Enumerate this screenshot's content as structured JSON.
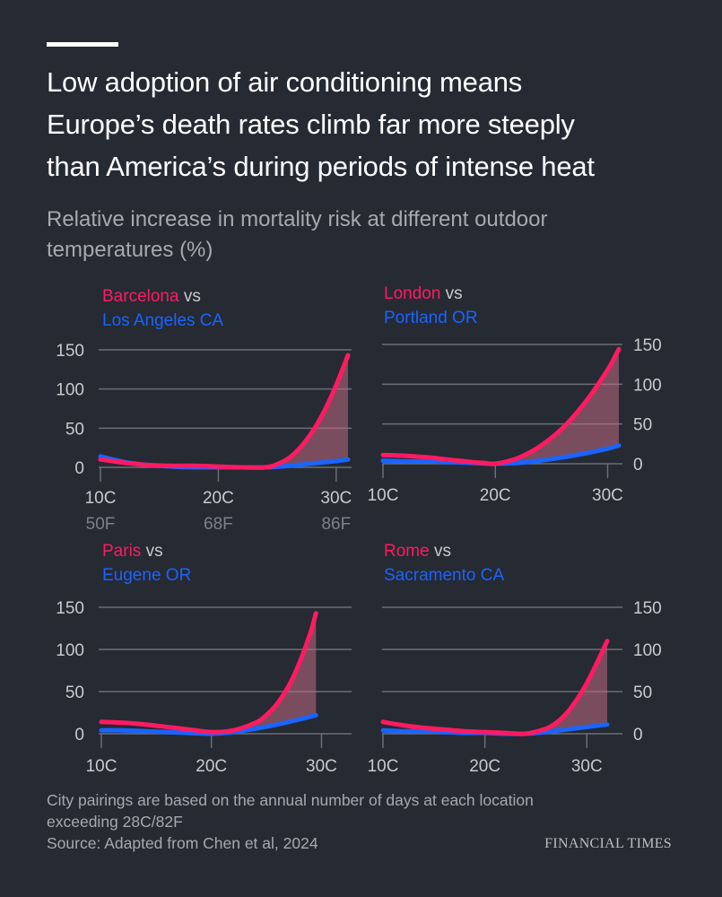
{
  "title_lines": [
    "Low adoption of air conditioning means",
    "Europe’s death rates climb far more steeply",
    "than America’s during periods of intense heat"
  ],
  "subtitle_lines": [
    "Relative increase in mortality risk at different outdoor",
    "temperatures (%)"
  ],
  "footer": {
    "note_lines": [
      "City pairings are based on the annual number of days at each location",
      "exceeding 28C/82F"
    ],
    "source": "Source: Adapted from Chen et al, 2024",
    "brand": "FINANCIAL TIMES"
  },
  "colors": {
    "europe": "#ff1b62",
    "us": "#1a64ff",
    "gap_fill": "#c06a82",
    "gridline": "#6b6e76",
    "axis_text": "#c8cacd",
    "f_text": "#7d8087",
    "background": "#262a33"
  },
  "chart_data": [
    {
      "type": "line",
      "europe_city": "Barcelona",
      "us_city": "Los Angeles CA",
      "vs_label": "vs",
      "xlim": [
        10,
        31
      ],
      "ylim": [
        0,
        150
      ],
      "y_ticks": [
        0,
        50,
        100,
        150
      ],
      "y_axis_side": "left",
      "x_ticks": [
        10,
        20,
        30
      ],
      "x_tick_labels": [
        "10C",
        "20C",
        "30C"
      ],
      "x_tick_labels_f": [
        "50F",
        "68F",
        "86F"
      ],
      "series": [
        {
          "name": "Barcelona",
          "x": [
            10,
            12,
            14,
            16,
            18,
            20,
            22,
            24,
            25,
            26,
            27,
            28,
            29,
            30,
            31
          ],
          "values": [
            10,
            6,
            3,
            2,
            2,
            1,
            0,
            0,
            4,
            12,
            26,
            46,
            72,
            105,
            143
          ]
        },
        {
          "name": "Los Angeles CA",
          "x": [
            10,
            12,
            14,
            16,
            18,
            20,
            22,
            24,
            26,
            28,
            30,
            31
          ],
          "values": [
            14,
            7,
            3,
            1,
            0,
            0,
            0,
            0,
            2,
            5,
            8,
            10
          ]
        }
      ]
    },
    {
      "type": "line",
      "europe_city": "London",
      "us_city": "Portland OR",
      "vs_label": "vs",
      "xlim": [
        10,
        31
      ],
      "ylim": [
        0,
        150
      ],
      "y_ticks": [
        0,
        50,
        100,
        150
      ],
      "y_axis_side": "right",
      "x_ticks": [
        10,
        20,
        30
      ],
      "x_tick_labels": [
        "10C",
        "20C",
        "30C"
      ],
      "x_tick_labels_f": [],
      "series": [
        {
          "name": "London",
          "x": [
            10,
            12,
            14,
            16,
            18,
            19,
            20,
            22,
            24,
            26,
            28,
            30,
            31
          ],
          "values": [
            11,
            10,
            8,
            5,
            2,
            1,
            0,
            7,
            22,
            45,
            77,
            118,
            144
          ]
        },
        {
          "name": "Portland OR",
          "x": [
            10,
            12,
            14,
            16,
            18,
            20,
            22,
            24,
            26,
            28,
            30,
            31
          ],
          "values": [
            4,
            3,
            3,
            2,
            1,
            0,
            1,
            4,
            8,
            13,
            19,
            23
          ]
        }
      ]
    },
    {
      "type": "line",
      "europe_city": "Paris",
      "us_city": "Eugene OR",
      "vs_label": "vs",
      "xlim": [
        10,
        32
      ],
      "ylim": [
        0,
        150
      ],
      "y_ticks": [
        0,
        50,
        100,
        150
      ],
      "y_axis_side": "left",
      "x_ticks": [
        10,
        20,
        30
      ],
      "x_tick_labels": [
        "10C",
        "20C",
        "30C"
      ],
      "x_tick_labels_f": [],
      "series": [
        {
          "name": "Paris",
          "x": [
            10,
            12,
            14,
            16,
            18,
            20,
            22,
            24,
            25,
            26,
            27,
            28,
            29,
            29.5
          ],
          "values": [
            14,
            13,
            11,
            8,
            5,
            2,
            4,
            13,
            22,
            36,
            56,
            84,
            120,
            143
          ]
        },
        {
          "name": "Eugene OR",
          "x": [
            10,
            12,
            14,
            16,
            18,
            20,
            22,
            24,
            26,
            28,
            29.5
          ],
          "values": [
            4,
            4,
            3,
            2,
            1,
            0,
            2,
            6,
            11,
            17,
            22
          ]
        }
      ]
    },
    {
      "type": "line",
      "europe_city": "Rome",
      "us_city": "Sacramento CA",
      "vs_label": "vs",
      "xlim": [
        10,
        32
      ],
      "ylim": [
        0,
        150
      ],
      "y_ticks": [
        0,
        50,
        100,
        150
      ],
      "y_axis_side": "right",
      "x_ticks": [
        10,
        20,
        30
      ],
      "x_tick_labels": [
        "10C",
        "20C",
        "30C"
      ],
      "x_tick_labels_f": [],
      "series": [
        {
          "name": "Rome",
          "x": [
            10,
            12,
            14,
            16,
            18,
            20,
            22,
            24,
            26,
            27,
            28,
            29,
            30,
            31,
            32
          ],
          "values": [
            14,
            10,
            7,
            5,
            3,
            2,
            1,
            0,
            6,
            13,
            24,
            40,
            60,
            84,
            110
          ]
        },
        {
          "name": "Sacramento CA",
          "x": [
            10,
            12,
            14,
            16,
            18,
            20,
            22,
            24,
            26,
            28,
            30,
            32
          ],
          "values": [
            4,
            3,
            3,
            2,
            1,
            1,
            0,
            0,
            2,
            5,
            8,
            11
          ]
        }
      ]
    }
  ]
}
